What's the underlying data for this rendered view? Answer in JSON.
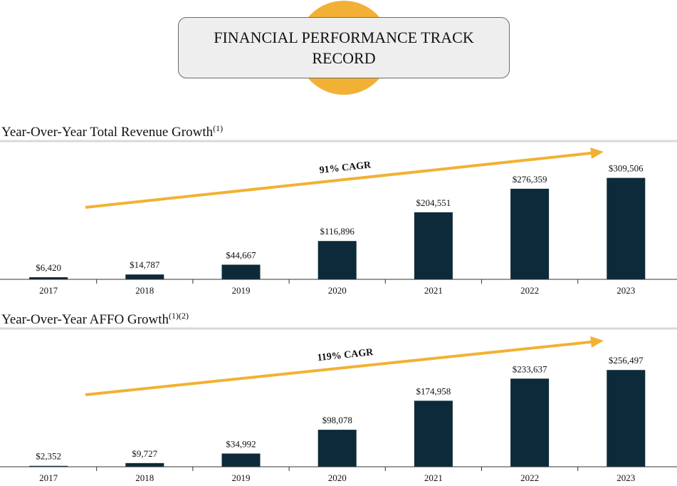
{
  "page_title": "FINANCIAL PERFORMANCE TRACK RECORD",
  "chart_data": [
    {
      "type": "bar",
      "title": "Year-Over-Year Total Revenue Growth",
      "title_note": "(1)",
      "annotation": "91% CAGR",
      "categories": [
        "2017",
        "2018",
        "2019",
        "2020",
        "2021",
        "2022",
        "2023"
      ],
      "values": [
        6420,
        14787,
        44667,
        116896,
        204551,
        276359,
        309506
      ],
      "value_labels": [
        "$6,420",
        "$14,787",
        "$44,667",
        "$116,896",
        "$204,551",
        "$276,359",
        "$309,506"
      ],
      "color": "#0d2a3a",
      "ylim": [
        0,
        400000
      ]
    },
    {
      "type": "bar",
      "title": "Year-Over-Year AFFO Growth",
      "title_note": "(1)(2)",
      "annotation": "119% CAGR",
      "categories": [
        "2017",
        "2018",
        "2019",
        "2020",
        "2021",
        "2022",
        "2023"
      ],
      "values": [
        2352,
        9727,
        34992,
        98078,
        174958,
        233637,
        256497
      ],
      "value_labels": [
        "$2,352",
        "$9,727",
        "$34,992",
        "$98,078",
        "$174,958",
        "$233,637",
        "$256,497"
      ],
      "color": "#0d2a3a",
      "ylim": [
        0,
        340000
      ]
    }
  ]
}
